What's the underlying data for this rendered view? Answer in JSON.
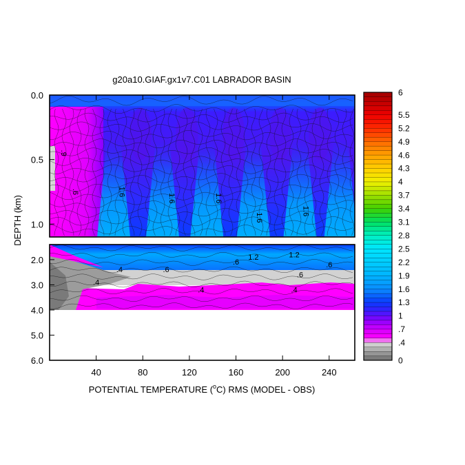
{
  "chart_data": {
    "type": "heatmap",
    "title": "g20a10.GIAF.gx1v7.C01 LABRADOR BASIN",
    "xlabel_prefix": "POTENTIAL TEMPERATURE (",
    "xlabel_sup": "o",
    "xlabel_suffix": "C) RMS (MODEL - OBS)",
    "ylabel": "DEPTH (km)",
    "xlim": [
      0,
      262
    ],
    "x_ticks": [
      40,
      80,
      120,
      160,
      200,
      240
    ],
    "y_panels": [
      {
        "name": "upper",
        "ylim": [
          0.0,
          1.1
        ],
        "y_ticks": [
          0.0,
          0.5,
          1.0
        ],
        "y_tick_labels": [
          "0.0",
          "0.5",
          "1.0"
        ]
      },
      {
        "name": "lower",
        "ylim": [
          1.4,
          6.0
        ],
        "y_ticks": [
          2.0,
          3.0,
          4.0,
          5.0,
          6.0
        ],
        "y_tick_labels": [
          "2.0",
          "3.0",
          "4.0",
          "5.0",
          "6.0"
        ]
      }
    ],
    "colorbar": {
      "range": [
        0,
        6
      ],
      "labels": [
        "6",
        "5.5",
        "5.2",
        "4.9",
        "4.6",
        "4.3",
        "4",
        "3.7",
        "3.4",
        "3.1",
        "2.8",
        "2.5",
        "2.2",
        "1.9",
        "1.6",
        "1.3",
        "1",
        ".7",
        ".4",
        "0"
      ],
      "label_values": [
        6,
        5.5,
        5.2,
        4.9,
        4.6,
        4.3,
        4.0,
        3.7,
        3.4,
        3.1,
        2.8,
        2.5,
        2.2,
        1.9,
        1.6,
        1.3,
        1.0,
        0.7,
        0.4,
        0
      ],
      "color_stops": [
        {
          "v": 0.0,
          "c": "#6e6e6e"
        },
        {
          "v": 0.3,
          "c": "#bdbdbd"
        },
        {
          "v": 0.4,
          "c": "#e0e0e0"
        },
        {
          "v": 0.5,
          "c": "#ff00ff"
        },
        {
          "v": 0.7,
          "c": "#d200ff"
        },
        {
          "v": 0.9,
          "c": "#8a00ff"
        },
        {
          "v": 1.1,
          "c": "#3b1cff"
        },
        {
          "v": 1.3,
          "c": "#0a3cff"
        },
        {
          "v": 1.6,
          "c": "#0a8cff"
        },
        {
          "v": 1.9,
          "c": "#00b4ff"
        },
        {
          "v": 2.5,
          "c": "#00e5ff"
        },
        {
          "v": 2.8,
          "c": "#00f0c0"
        },
        {
          "v": 3.1,
          "c": "#00e060"
        },
        {
          "v": 3.4,
          "c": "#40d000"
        },
        {
          "v": 3.7,
          "c": "#a0e000"
        },
        {
          "v": 4.0,
          "c": "#f0f000"
        },
        {
          "v": 4.3,
          "c": "#ffd000"
        },
        {
          "v": 4.6,
          "c": "#ffa000"
        },
        {
          "v": 4.9,
          "c": "#ff6a00"
        },
        {
          "v": 5.2,
          "c": "#ff2a00"
        },
        {
          "v": 5.5,
          "c": "#ee0000"
        },
        {
          "v": 6.0,
          "c": "#a00000"
        }
      ]
    },
    "contour_labels_upper": [
      "1.6",
      "1.6",
      "1.6",
      "1.6",
      "1.6",
      ".9",
      ".6"
    ],
    "contour_labels_lower": [
      ".4",
      ".6",
      ".6",
      ".6",
      ".4",
      ".4",
      ".4",
      ".6",
      "1.2",
      "1.2"
    ]
  }
}
